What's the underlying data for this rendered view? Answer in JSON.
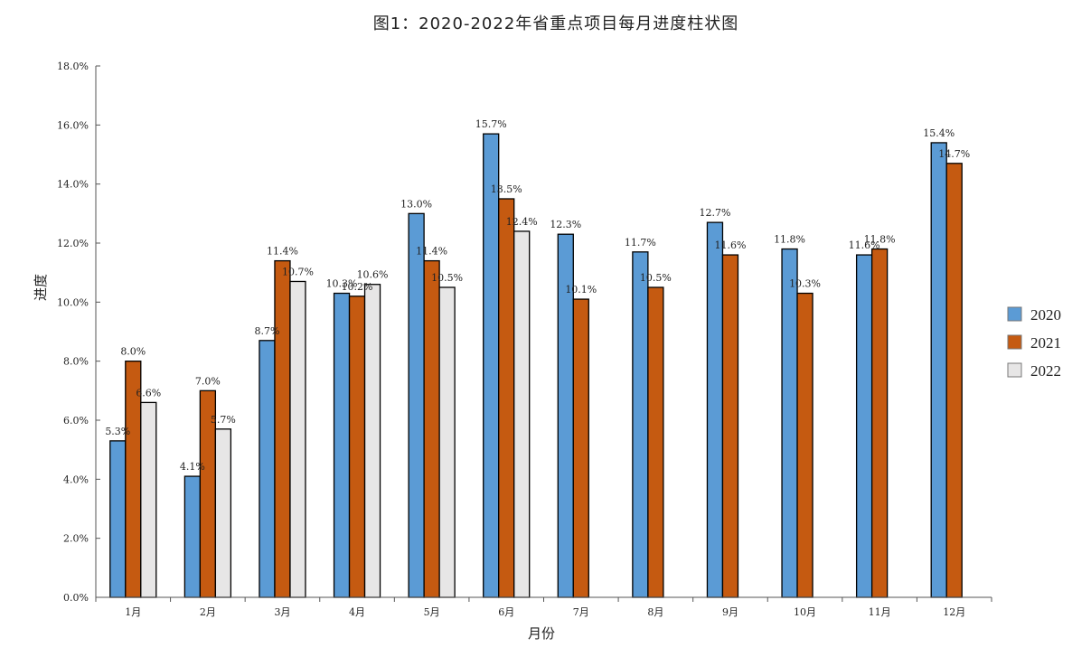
{
  "chart_data": {
    "type": "bar",
    "title": "图1：2020-2022年省重点项目每月进度柱状图",
    "xlabel": "月份",
    "ylabel": "进度",
    "categories": [
      "1月",
      "2月",
      "3月",
      "4月",
      "5月",
      "6月",
      "7月",
      "8月",
      "9月",
      "10月",
      "11月",
      "12月"
    ],
    "yticks": [
      "0.0%",
      "2.0%",
      "4.0%",
      "6.0%",
      "8.0%",
      "10.0%",
      "12.0%",
      "14.0%",
      "16.0%",
      "18.0%"
    ],
    "ylim": [
      0,
      18
    ],
    "series": [
      {
        "name": "2020",
        "color": "#5b9bd5",
        "values": [
          5.3,
          4.1,
          8.7,
          10.3,
          13.0,
          15.7,
          12.3,
          11.7,
          12.7,
          11.8,
          11.6,
          15.4
        ],
        "labels": [
          "5.3%",
          "4.1%",
          "8.7%",
          "10.3%",
          "13.0%",
          "15.7%",
          "12.3%",
          "11.7%",
          "12.7%",
          "11.8%",
          "11.6%",
          "15.4%"
        ]
      },
      {
        "name": "2021",
        "color": "#c55a11",
        "values": [
          8.0,
          7.0,
          11.4,
          10.2,
          11.4,
          13.5,
          10.1,
          10.5,
          11.6,
          10.3,
          11.8,
          14.7
        ],
        "labels": [
          "8.0%",
          "7.0%",
          "11.4%",
          "10.2%",
          "11.4%",
          "13.5%",
          "10.1%",
          "10.5%",
          "11.6%",
          "10.3%",
          "11.8%",
          "14.7%"
        ]
      },
      {
        "name": "2022",
        "color": "#e7e6e6",
        "values": [
          6.6,
          5.7,
          10.7,
          10.6,
          10.5,
          12.4,
          null,
          null,
          null,
          null,
          null,
          null
        ],
        "labels": [
          "6.6%",
          "5.7%",
          "10.7%",
          "10.6%",
          "10.5%",
          "12.4%",
          null,
          null,
          null,
          null,
          null,
          null
        ]
      }
    ],
    "grid": false,
    "legend_position": "right"
  }
}
